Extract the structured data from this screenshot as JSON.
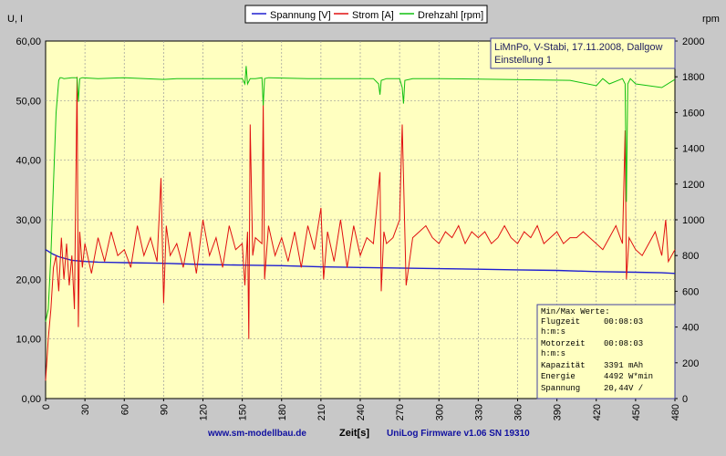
{
  "legend": [
    {
      "label": "Spannung [V]",
      "color": "#1f1fd0"
    },
    {
      "label": "Strom [A]",
      "color": "#e01010"
    },
    {
      "label": "Drehzahl [rpm]",
      "color": "#10c010"
    }
  ],
  "axes": {
    "left_label": "U, I",
    "right_label": "rpm",
    "x_label": "Zeit[s]"
  },
  "info_box": {
    "line1": "LiMnPo, V-Stabi, 17.11.2008, Dallgow",
    "line2": "Einstellung 1"
  },
  "stats_box": {
    "title": "Min/Max Werte:",
    "flugzeit_label": "Flugzeit",
    "flugzeit_value": "00:08:03",
    "flugzeit_unit": "h:m:s",
    "motorzeit_label": "Motorzeit",
    "motorzeit_value": "00:08:03",
    "motorzeit_unit": "h:m:s",
    "kapazitaet_label": "Kapazität",
    "kapazitaet_value": "3391 mAh",
    "energie_label": "Energie",
    "energie_value": "4492 W*min",
    "spannung_label": "Spannung",
    "spannung_value": "20,44V /"
  },
  "footer": {
    "website": "www.sm-modellbau.de",
    "firmware": "UniLog Firmware v1.06 SN 19310"
  },
  "colors": {
    "plot_bg": "#ffffc0",
    "frame_bg": "#c8c8c8",
    "grid": "#9a9a9a",
    "accent_text": "#1010a0"
  },
  "chart_data": {
    "type": "line",
    "xlabel": "Zeit[s]",
    "ylabel": "U, I",
    "y2label": "rpm",
    "xlim": [
      0,
      480
    ],
    "ylim": [
      0,
      60
    ],
    "y2lim": [
      0,
      2000
    ],
    "xticks": [
      "0",
      "30",
      "60",
      "90",
      "120",
      "150",
      "180",
      "210",
      "240",
      "270",
      "300",
      "330",
      "360",
      "390",
      "420",
      "450",
      "480"
    ],
    "yticks": [
      "0,00",
      "10,00",
      "20,00",
      "30,00",
      "40,00",
      "50,00",
      "60,00"
    ],
    "y2ticks": [
      "0",
      "200",
      "400",
      "600",
      "800",
      "1000",
      "1200",
      "1400",
      "1600",
      "1800",
      "2000"
    ],
    "grid": true,
    "legend_position": "top",
    "series": [
      {
        "name": "Spannung [V]",
        "axis": "left",
        "color": "#1f1fd0",
        "x": [
          0,
          5,
          10,
          15,
          20,
          30,
          40,
          60,
          90,
          120,
          150,
          180,
          210,
          240,
          270,
          300,
          330,
          360,
          390,
          420,
          450,
          470,
          480
        ],
        "y": [
          25.0,
          24.3,
          23.8,
          23.5,
          23.2,
          23.0,
          22.9,
          22.8,
          22.7,
          22.5,
          22.4,
          22.3,
          22.1,
          22.0,
          21.9,
          21.8,
          21.7,
          21.6,
          21.5,
          21.3,
          21.2,
          21.1,
          21.0
        ]
      },
      {
        "name": "Strom [A]",
        "axis": "left",
        "color": "#e01010",
        "x": [
          0,
          2,
          4,
          6,
          8,
          10,
          12,
          14,
          16,
          18,
          20,
          22,
          24,
          25,
          26,
          28,
          30,
          35,
          40,
          45,
          50,
          55,
          60,
          65,
          70,
          75,
          80,
          85,
          88,
          90,
          92,
          95,
          100,
          105,
          110,
          115,
          120,
          125,
          130,
          135,
          140,
          145,
          150,
          152,
          154,
          155,
          156,
          158,
          160,
          165,
          166,
          167,
          170,
          175,
          180,
          185,
          190,
          195,
          200,
          205,
          210,
          212,
          215,
          220,
          225,
          230,
          235,
          240,
          245,
          250,
          255,
          256,
          258,
          260,
          265,
          270,
          272,
          275,
          280,
          285,
          290,
          295,
          300,
          305,
          310,
          315,
          320,
          325,
          330,
          335,
          340,
          345,
          350,
          355,
          360,
          365,
          370,
          375,
          380,
          385,
          390,
          395,
          400,
          405,
          410,
          415,
          420,
          425,
          430,
          435,
          440,
          442,
          443,
          445,
          450,
          455,
          460,
          465,
          470,
          473,
          475,
          480
        ],
        "y": [
          3,
          10,
          15,
          22,
          24,
          18,
          27,
          20,
          26,
          19,
          24,
          15,
          54,
          12,
          28,
          22,
          26,
          21,
          27,
          23,
          28,
          24,
          25,
          22,
          29,
          24,
          27,
          23,
          37,
          16,
          29,
          24,
          26,
          22,
          28,
          21,
          30,
          24,
          27,
          22,
          29,
          25,
          26,
          19,
          28,
          10,
          46,
          24,
          27,
          26,
          50,
          20,
          29,
          24,
          27,
          23,
          28,
          22,
          29,
          25,
          32,
          20,
          28,
          23,
          30,
          22,
          29,
          24,
          27,
          26,
          38,
          18,
          28,
          26,
          27,
          30,
          46,
          19,
          27,
          28,
          29,
          27,
          26,
          28,
          27,
          29,
          26,
          28,
          27,
          28,
          26,
          27,
          29,
          27,
          26,
          28,
          27,
          29,
          26,
          27,
          28,
          26,
          27,
          27,
          28,
          27,
          26,
          25,
          27,
          29,
          26,
          45,
          20,
          27,
          25,
          24,
          26,
          28,
          24,
          30,
          23,
          25
        ]
      },
      {
        "name": "Drehzahl [rpm]",
        "axis": "right",
        "color": "#10c010",
        "x": [
          0,
          2,
          4,
          6,
          8,
          10,
          11,
          12,
          14,
          20,
          24,
          25,
          26,
          28,
          40,
          60,
          90,
          100,
          150,
          152,
          153,
          154,
          156,
          160,
          165,
          166,
          167,
          170,
          200,
          250,
          254,
          255,
          256,
          260,
          270,
          272,
          273,
          274,
          280,
          300,
          350,
          400,
          420,
          425,
          430,
          440,
          442,
          443,
          444,
          446,
          450,
          460,
          470,
          480
        ],
        "y": [
          430,
          500,
          800,
          1200,
          1600,
          1780,
          1795,
          1795,
          1790,
          1795,
          1795,
          1660,
          1790,
          1795,
          1790,
          1795,
          1785,
          1790,
          1790,
          1760,
          1860,
          1760,
          1790,
          1790,
          1795,
          1640,
          1790,
          1795,
          1790,
          1790,
          1760,
          1700,
          1780,
          1790,
          1790,
          1740,
          1650,
          1780,
          1790,
          1790,
          1785,
          1780,
          1750,
          1790,
          1760,
          1790,
          1760,
          1100,
          1760,
          1790,
          1760,
          1750,
          1740,
          1785
        ]
      }
    ]
  }
}
